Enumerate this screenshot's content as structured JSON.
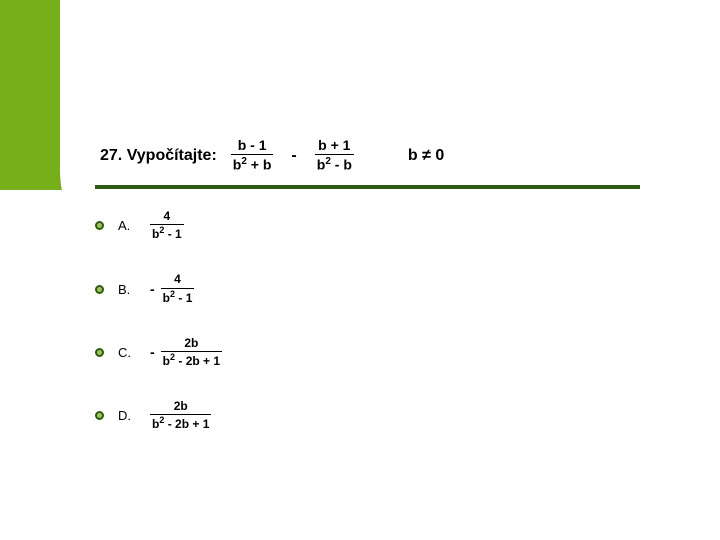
{
  "question": {
    "number_label": "27. Vypočítajte:",
    "frac1": {
      "num": "b - 1",
      "den_base": "b",
      "den_exp": "2",
      "den_rest": " + b"
    },
    "op": "-",
    "frac2": {
      "num": "b + 1",
      "den_base": "b",
      "den_exp": "2",
      "den_rest": " - b"
    },
    "condition": "b ≠ 0"
  },
  "options": {
    "A": {
      "label": "A.",
      "sign": "",
      "num": "4",
      "den_base": "b",
      "den_exp": "2",
      "den_rest": " - 1"
    },
    "B": {
      "label": "B.",
      "sign": "-",
      "num": "4",
      "den_base": "b",
      "den_exp": "2",
      "den_rest": " - 1"
    },
    "C": {
      "label": "C.",
      "sign": "-",
      "num": "2b",
      "den_base": "b",
      "den_exp": "2",
      "den_rest": " - 2b + 1"
    },
    "D": {
      "label": "D.",
      "sign": "",
      "num": "2b",
      "den_base": "b",
      "den_exp": "2",
      "den_rest": " - 2b + 1"
    }
  },
  "colors": {
    "bg_green": "#77af1b",
    "underline": "#2f5a14",
    "bullet_border": "#2f5a14",
    "bullet_fill": "#9fc758",
    "white": "#ffffff",
    "text": "#000000"
  }
}
